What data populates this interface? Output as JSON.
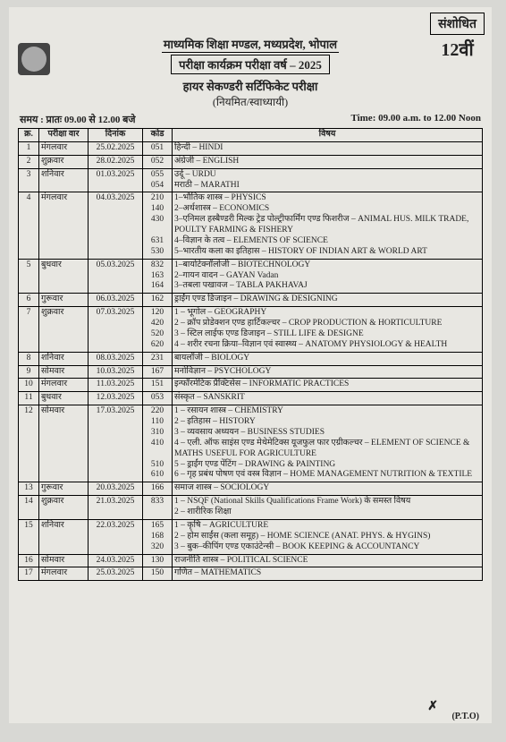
{
  "banner": {
    "revised": "संशोधित",
    "class": "12वीं"
  },
  "header": {
    "board": "माध्यमिक शिक्षा मण्डल, मध्यप्रदेश, भोपाल",
    "exam_year": "परीक्षा कार्यक्रम परीक्षा वर्ष – 2025",
    "exam_name": "हायर सेकण्डरी सर्टिफिकेट परीक्षा",
    "exam_mode": "(नियमित/स्वाध्यायी)"
  },
  "timing": {
    "left": "समय : प्रातः 09.00 से 12.00 बजे",
    "right": "Time: 09.00 a.m. to 12.00 Noon"
  },
  "columns": {
    "sn": "क्र.",
    "day": "परीक्षा वार",
    "date": "दिनांक",
    "code": "कोड",
    "subject": "विषय"
  },
  "rows": [
    {
      "sn": "1",
      "day": "मंगलवार",
      "date": "25.02.2025",
      "codes": [
        "051"
      ],
      "subjects": [
        "हिन्दी – HINDI"
      ]
    },
    {
      "sn": "2",
      "day": "शुक्रवार",
      "date": "28.02.2025",
      "codes": [
        "052"
      ],
      "subjects": [
        "अंग्रेजी – ENGLISH"
      ]
    },
    {
      "sn": "3",
      "day": "शनिवार",
      "date": "01.03.2025",
      "codes": [
        "055",
        "054"
      ],
      "subjects": [
        "उर्दू – URDU",
        "मराठी – MARATHI"
      ]
    },
    {
      "sn": "4",
      "day": "मंगलवार",
      "date": "04.03.2025",
      "codes": [
        "210",
        "140",
        "430",
        "",
        "631",
        "530"
      ],
      "subjects": [
        "1–भौतिक शास्त्र – PHYSICS",
        "2–अर्थशास्त्र – ECONOMICS",
        "3–एनिमल हस्बैण्डरी मिल्क ट्रेड पोल्ट्रीफार्मिंग एण्ड फिशरीज – ANIMAL HUS. MILK TRADE, POULTY FARMING & FISHERY",
        "4–विज्ञान के तत्व – ELEMENTS OF SCIENCE",
        "5–भारतीय कला का इतिहास – HISTORY OF INDIAN ART & WORLD ART"
      ]
    },
    {
      "sn": "5",
      "day": "बुधवार",
      "date": "05.03.2025",
      "codes": [
        "832",
        "163",
        "164"
      ],
      "subjects": [
        "1–बायोटेक्नॉलोजी – BIOTECHNOLOGY",
        "2–गायन वादन – GAYAN Vadan",
        "3–तबला पखावज – TABLA PAKHAVAJ"
      ]
    },
    {
      "sn": "6",
      "day": "गुरूवार",
      "date": "06.03.2025",
      "codes": [
        "162"
      ],
      "subjects": [
        "ड्राईंग एण्ड डिजाइन – DRAWING & DESIGNING"
      ]
    },
    {
      "sn": "7",
      "day": "शुक्रवार",
      "date": "07.03.2025",
      "codes": [
        "120",
        "420",
        "520",
        "620"
      ],
      "subjects": [
        "1 – भूगोल – GEOGRAPHY",
        "2 – क्रॉप प्रोडेक्शन एण्ड हार्टिकल्चर – CROP PRODUCTION & HORTICULTURE",
        "3 – स्टिल लाईफ एण्ड डिजाइन – STILL LIFE & DESIGNE",
        "4 – शरीर रचना क्रिया–विज्ञान एवं स्वास्थ्य – ANATOMY PHYSIOLOGY & HEALTH"
      ]
    },
    {
      "sn": "8",
      "day": "शनिवार",
      "date": "08.03.2025",
      "codes": [
        "231"
      ],
      "subjects": [
        "बायलॉजी – BIOLOGY"
      ]
    },
    {
      "sn": "9",
      "day": "सोमवार",
      "date": "10.03.2025",
      "codes": [
        "167"
      ],
      "subjects": [
        "मनोविज्ञान – PSYCHOLOGY"
      ]
    },
    {
      "sn": "10",
      "day": "मंगलवार",
      "date": "11.03.2025",
      "codes": [
        "151"
      ],
      "subjects": [
        "इन्फॉरमेटिक प्रैक्टिसेस – INFORMATIC PRACTICES"
      ]
    },
    {
      "sn": "11",
      "day": "बुधवार",
      "date": "12.03.2025",
      "codes": [
        "053"
      ],
      "subjects": [
        "संस्कृत – SANSKRIT"
      ]
    },
    {
      "sn": "12",
      "day": "सोमवार",
      "date": "17.03.2025",
      "codes": [
        "220",
        "110",
        "310",
        "410",
        "",
        "510",
        "610"
      ],
      "subjects": [
        "1 – रसायन शास्त्र – CHEMISTRY",
        "2 – इतिहास – HISTORY",
        "3 – व्यवसाय अध्ययन – BUSINESS STUDIES",
        "4 – एली. ऑफ साइंस एण्ड मेथेमेटिक्स यूजफुल फार एग्रीकल्चर – ELEMENT OF SCIENCE & MATHS USEFUL FOR AGRICULTURE",
        "5 – ड्राईंग एण्ड पेंटिंग – DRAWING & PAINTING",
        "6 – गृह प्रबंध पोषण एवं वस्त्र विज्ञान – HOME MANAGEMENT NUTRITION & TEXTILE"
      ]
    },
    {
      "sn": "13",
      "day": "गुरूवार",
      "date": "20.03.2025",
      "codes": [
        "166"
      ],
      "subjects": [
        "समाज शास्त्र – SOCIOLOGY"
      ]
    },
    {
      "sn": "14",
      "day": "शुक्रवार",
      "date": "21.03.2025",
      "codes": [
        "833"
      ],
      "subjects": [
        "1 – NSQF (National Skills Qualifications Frame Work) के समस्त विषय",
        "2 – शारीरिक शिक्षा"
      ]
    },
    {
      "sn": "15",
      "day": "शनिवार",
      "date": "22.03.2025",
      "codes": [
        "165",
        "168",
        "320"
      ],
      "subjects": [
        "1 – कृषि – AGRICULTURE",
        "2 – होम साईंस (कला समूह) – HOME SCIENCE (ANAT. PHYS. & HYGINS)",
        "3 – बुक–कीपिंग एण्ड एकाउंटेन्सी – BOOK KEEPING & ACCOUNTANCY"
      ]
    },
    {
      "sn": "16",
      "day": "सोमवार",
      "date": "24.03.2025",
      "codes": [
        "130"
      ],
      "subjects": [
        "राजनीति शास्त्र – POLITICAL SCIENCE"
      ]
    },
    {
      "sn": "17",
      "day": "मंगलवार",
      "date": "25.03.2025",
      "codes": [
        "150"
      ],
      "subjects": [
        "गणित – MATHEMATICS"
      ]
    }
  ],
  "footer": {
    "pto": "(P.T.O)",
    "mark": "✗"
  }
}
